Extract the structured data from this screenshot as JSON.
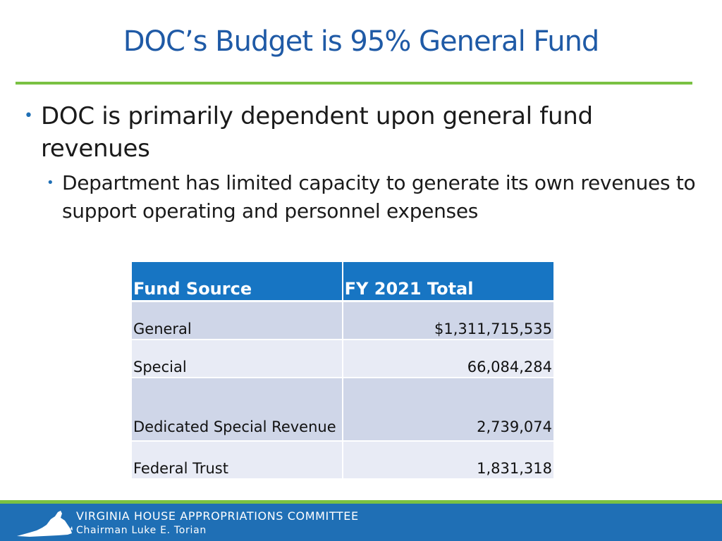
{
  "slide": {
    "title": "DOC’s Budget is 95% General Fund",
    "bullet_main": "DOC is primarily dependent upon general fund revenues",
    "bullet_sub": "Department has limited capacity to generate its own revenues to support operating and personnel expenses"
  },
  "table": {
    "headers": [
      "Fund Source",
      "FY 2021 Total"
    ],
    "rows": [
      {
        "source": "General",
        "total": "$1,311,715,535"
      },
      {
        "source": "Special",
        "total": "66,084,284"
      },
      {
        "source": "Dedicated Special Revenue",
        "total": "2,739,074"
      },
      {
        "source": "Federal Trust",
        "total": "1,831,318"
      }
    ]
  },
  "footer": {
    "organization": "VIRGINIA HOUSE APPROPRIATIONS COMMITTEE",
    "chairman": "Chairman Luke E. Torian",
    "logo_icon": "virginia-state-outline-icon"
  },
  "colors": {
    "title": "#1f5aa6",
    "accent_green": "#7ac143",
    "header_blue": "#1775c3",
    "row_dark": "#cfd6e8",
    "row_light": "#e8ebf5",
    "footer_blue": "#1f6fb5"
  }
}
